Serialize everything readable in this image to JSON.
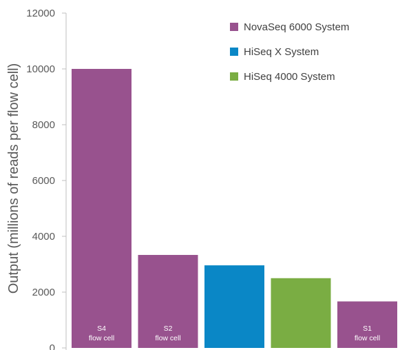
{
  "chart_data": {
    "type": "bar",
    "ylabel": "Output (millions of reads per flow cell)",
    "ylim": [
      0,
      12000
    ],
    "yticks": [
      0,
      2000,
      4000,
      6000,
      8000,
      10000,
      12000
    ],
    "grid": false,
    "legend_position": "top-right",
    "bars": [
      {
        "series": "NovaSeq 6000 System",
        "value": 10000,
        "label_line1": "S4",
        "label_line2": "flow cell"
      },
      {
        "series": "NovaSeq 6000 System",
        "value": 3333,
        "label_line1": "S2",
        "label_line2": "flow cell"
      },
      {
        "series": "HiSeq X System",
        "value": 2960,
        "label_line1": "",
        "label_line2": ""
      },
      {
        "series": "HiSeq 4000 System",
        "value": 2500,
        "label_line1": "",
        "label_line2": ""
      },
      {
        "series": "NovaSeq 6000 System",
        "value": 1667,
        "label_line1": "S1",
        "label_line2": "flow cell"
      }
    ],
    "series": [
      {
        "name": "NovaSeq 6000 System",
        "color": "#98528e"
      },
      {
        "name": "HiSeq X System",
        "color": "#0a87c6"
      },
      {
        "name": "HiSeq 4000 System",
        "color": "#7aad43"
      }
    ]
  }
}
